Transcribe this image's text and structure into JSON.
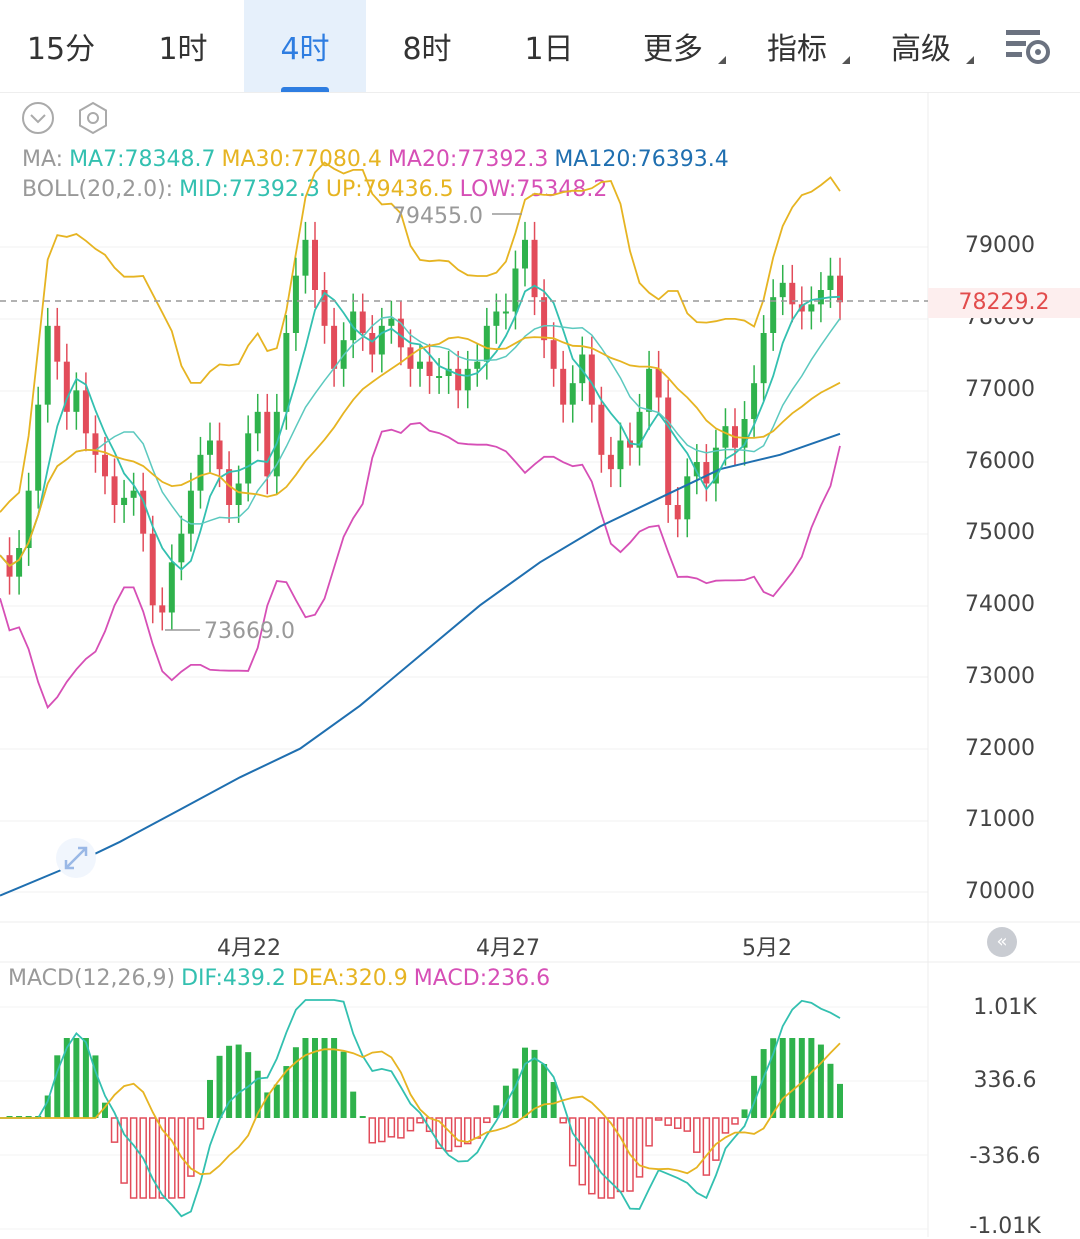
{
  "tabs": [
    {
      "label": "15分"
    },
    {
      "label": "1时"
    },
    {
      "label": "4时"
    },
    {
      "label": "8时"
    },
    {
      "label": "1日"
    },
    {
      "label": "更多"
    },
    {
      "label": "指标"
    },
    {
      "label": "高级"
    }
  ],
  "active_tab": "4时",
  "legend": {
    "ma_prefix": "MA:",
    "ma7": "MA7:78348.7",
    "ma30": "MA30:77080.4",
    "ma20": "MA20:77392.3",
    "ma120": "MA120:76393.4",
    "boll_prefix": "BOLL(20,2.0):",
    "mid": "MID:77392.3",
    "up": "UP:79436.5",
    "low": "LOW:75348.2"
  },
  "macd_legend": {
    "prefix": "MACD(12,26,9)",
    "dif": "DIF:439.2",
    "dea": "DEA:320.9",
    "macd": "MACD:236.6"
  },
  "price_axis": [
    "79000",
    "78000",
    "77000",
    "76000",
    "75000",
    "74000",
    "73000",
    "72000",
    "71000",
    "70000"
  ],
  "current_price": "78229.2",
  "high_label": "79455.0",
  "low_label": "73669.0",
  "dates": [
    "4月22",
    "4月27",
    "5月2"
  ],
  "macd_axis": [
    "1.01K",
    "336.6",
    "-336.6",
    "-1.01K"
  ],
  "colors": {
    "up": "#2fb24c",
    "down": "#e24c5a",
    "ma7": "#33c0b0",
    "ma30": "#e6b422",
    "ma20": "#d64fb6",
    "ma120": "#1f6fb0",
    "accent": "#2e7de1"
  },
  "chart_data": {
    "type": "candlestick",
    "ylim": [
      70000,
      79500
    ],
    "series_ma120": [
      69950,
      70300,
      70700,
      71150,
      71600,
      72000,
      72600,
      73300,
      74000,
      74600,
      75100,
      75500,
      75900,
      76100,
      76393.4
    ],
    "macd_ylim": [
      -1010,
      1010
    ]
  }
}
